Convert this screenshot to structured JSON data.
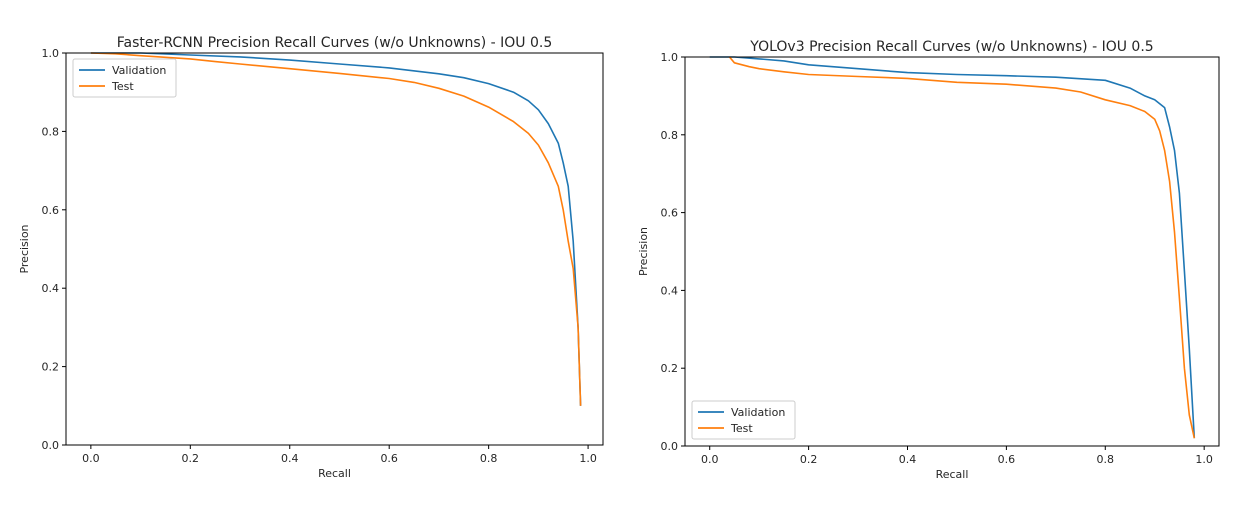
{
  "chart_data": [
    {
      "type": "line",
      "title": "Faster-RCNN Precision Recall Curves (w/o Unknowns) - IOU 0.5",
      "xlabel": "Recall",
      "ylabel": "Precision",
      "xlim": [
        -0.05,
        1.03
      ],
      "ylim": [
        0.0,
        1.0
      ],
      "xticks": [
        "0.0",
        "0.2",
        "0.4",
        "0.6",
        "0.8",
        "1.0"
      ],
      "yticks": [
        "0.0",
        "0.2",
        "0.4",
        "0.6",
        "0.8",
        "1.0"
      ],
      "grid": false,
      "legend_position": "upper-left",
      "series": [
        {
          "name": "Validation",
          "color": "#1f77b4",
          "x": [
            0.0,
            0.05,
            0.1,
            0.2,
            0.3,
            0.4,
            0.5,
            0.6,
            0.7,
            0.75,
            0.8,
            0.85,
            0.88,
            0.9,
            0.92,
            0.94,
            0.95,
            0.96,
            0.97,
            0.98,
            0.985
          ],
          "y": [
            1.0,
            1.0,
            1.0,
            0.995,
            0.99,
            0.982,
            0.972,
            0.962,
            0.947,
            0.937,
            0.922,
            0.9,
            0.878,
            0.855,
            0.82,
            0.77,
            0.72,
            0.66,
            0.52,
            0.3,
            0.1
          ]
        },
        {
          "name": "Test",
          "color": "#ff7f0e",
          "x": [
            0.0,
            0.05,
            0.1,
            0.2,
            0.25,
            0.3,
            0.4,
            0.5,
            0.6,
            0.65,
            0.7,
            0.75,
            0.8,
            0.85,
            0.88,
            0.9,
            0.92,
            0.94,
            0.95,
            0.96,
            0.97,
            0.98,
            0.985
          ],
          "y": [
            1.0,
            0.998,
            0.993,
            0.985,
            0.978,
            0.972,
            0.96,
            0.948,
            0.935,
            0.925,
            0.91,
            0.89,
            0.862,
            0.825,
            0.795,
            0.765,
            0.72,
            0.66,
            0.6,
            0.52,
            0.45,
            0.3,
            0.1
          ]
        }
      ]
    },
    {
      "type": "line",
      "title": "YOLOv3 Precision Recall Curves (w/o Unknowns) - IOU 0.5",
      "xlabel": "Recall",
      "ylabel": "Precision",
      "xlim": [
        -0.05,
        1.03
      ],
      "ylim": [
        0.0,
        1.0
      ],
      "xticks": [
        "0.0",
        "0.2",
        "0.4",
        "0.6",
        "0.8",
        "1.0"
      ],
      "yticks": [
        "0.0",
        "0.2",
        "0.4",
        "0.6",
        "0.8",
        "1.0"
      ],
      "grid": false,
      "legend_position": "lower-left",
      "series": [
        {
          "name": "Validation",
          "color": "#1f77b4",
          "x": [
            0.0,
            0.05,
            0.1,
            0.15,
            0.2,
            0.3,
            0.4,
            0.5,
            0.6,
            0.7,
            0.8,
            0.85,
            0.88,
            0.9,
            0.92,
            0.93,
            0.94,
            0.95,
            0.96,
            0.97,
            0.98
          ],
          "y": [
            1.0,
            1.0,
            0.995,
            0.99,
            0.98,
            0.97,
            0.96,
            0.955,
            0.952,
            0.948,
            0.94,
            0.92,
            0.9,
            0.89,
            0.87,
            0.82,
            0.76,
            0.65,
            0.45,
            0.25,
            0.02
          ]
        },
        {
          "name": "Test",
          "color": "#ff7f0e",
          "x": [
            0.04,
            0.05,
            0.08,
            0.1,
            0.15,
            0.2,
            0.3,
            0.4,
            0.5,
            0.6,
            0.7,
            0.75,
            0.8,
            0.85,
            0.88,
            0.9,
            0.91,
            0.92,
            0.93,
            0.94,
            0.95,
            0.96,
            0.97,
            0.98
          ],
          "y": [
            1.0,
            0.985,
            0.975,
            0.97,
            0.962,
            0.955,
            0.95,
            0.945,
            0.935,
            0.93,
            0.92,
            0.91,
            0.89,
            0.875,
            0.86,
            0.84,
            0.81,
            0.76,
            0.68,
            0.55,
            0.38,
            0.2,
            0.08,
            0.02
          ]
        }
      ]
    }
  ]
}
